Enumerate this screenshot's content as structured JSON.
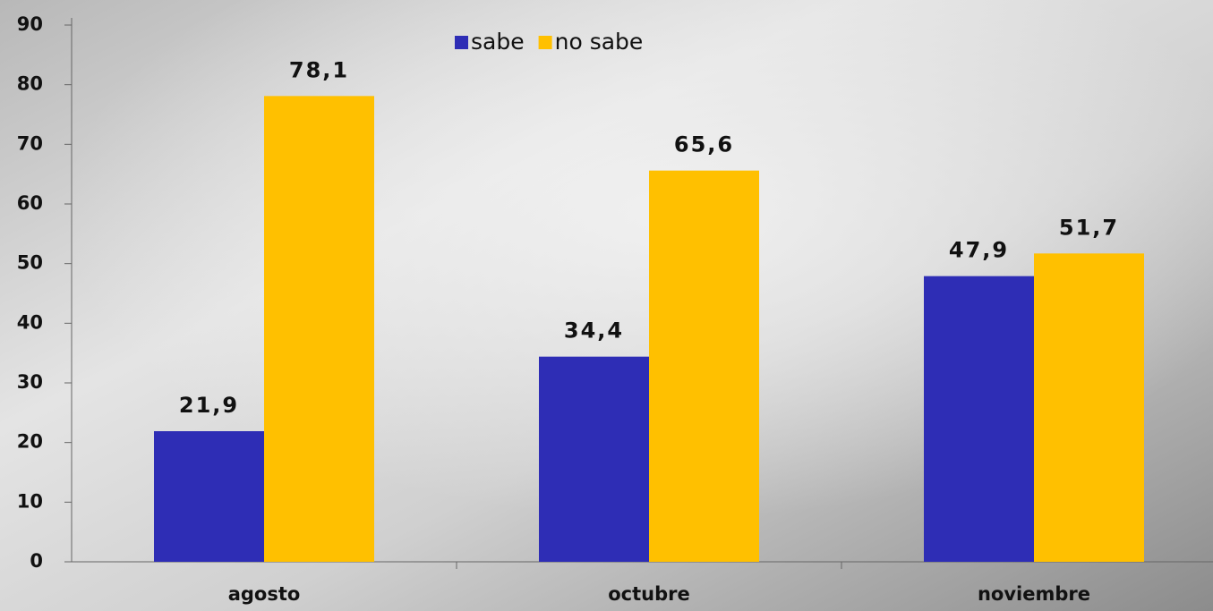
{
  "chart_data": {
    "type": "bar",
    "categories": [
      "agosto",
      "octubre",
      "noviembre"
    ],
    "series": [
      {
        "name": "sabe",
        "color": "#2e2db5",
        "values": [
          21.9,
          34.4,
          47.9
        ],
        "value_labels": [
          "21,9",
          "34,4",
          "47,9"
        ]
      },
      {
        "name": "no sabe",
        "color": "#ffc000",
        "values": [
          78.1,
          65.6,
          51.7
        ],
        "value_labels": [
          "78,1",
          "65,6",
          "51,7"
        ]
      }
    ],
    "ylim": [
      0,
      90
    ],
    "yticks": [
      0,
      10,
      20,
      30,
      40,
      50,
      60,
      70,
      80,
      90
    ],
    "legend": "top"
  }
}
